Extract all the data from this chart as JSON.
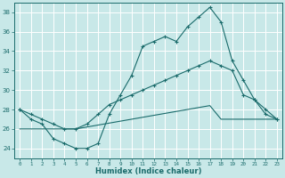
{
  "xlabel": "Humidex (Indice chaleur)",
  "bg_color": "#c8e8e8",
  "line_color": "#1a6b6b",
  "grid_color": "#ffffff",
  "xlim": [
    -0.5,
    23.5
  ],
  "ylim": [
    23,
    39
  ],
  "yticks": [
    24,
    26,
    28,
    30,
    32,
    34,
    36,
    38
  ],
  "xticks": [
    0,
    1,
    2,
    3,
    4,
    5,
    6,
    7,
    8,
    9,
    10,
    11,
    12,
    13,
    14,
    15,
    16,
    17,
    18,
    19,
    20,
    21,
    22,
    23
  ],
  "line1_x": [
    0,
    1,
    2,
    3,
    4,
    5,
    6,
    7,
    8,
    9,
    10,
    11,
    12,
    13,
    14,
    15,
    16,
    17,
    18,
    19,
    20,
    21,
    22,
    23
  ],
  "line1_y": [
    28,
    27,
    26.5,
    25,
    24.5,
    24,
    24,
    24.5,
    27.5,
    29.5,
    31.5,
    34.5,
    35.0,
    35.5,
    35.0,
    36.5,
    37.5,
    38.5,
    37,
    33.0,
    31.0,
    29.0,
    28.0,
    27
  ],
  "line2_x": [
    0,
    1,
    2,
    3,
    4,
    5,
    6,
    7,
    8,
    9,
    10,
    11,
    12,
    13,
    14,
    15,
    16,
    17,
    18,
    19,
    20,
    21,
    22,
    23
  ],
  "line2_y": [
    28,
    27.5,
    27.0,
    26.5,
    26.0,
    26.0,
    26.5,
    27.5,
    28.5,
    29.0,
    29.5,
    30.0,
    30.5,
    31.0,
    31.5,
    32.0,
    32.5,
    33.0,
    32.5,
    32.0,
    29.5,
    29.0,
    27.5,
    27
  ],
  "line3_x": [
    0,
    1,
    2,
    3,
    4,
    5,
    6,
    7,
    8,
    9,
    10,
    11,
    12,
    13,
    14,
    15,
    16,
    17,
    18,
    19,
    20,
    21,
    22,
    23
  ],
  "line3_y": [
    26,
    26,
    26,
    26,
    26,
    26,
    26.2,
    26.4,
    26.6,
    26.8,
    27.0,
    27.2,
    27.4,
    27.6,
    27.8,
    28.0,
    28.2,
    28.4,
    27.0,
    27.0,
    27.0,
    27.0,
    27.0,
    27.0
  ]
}
